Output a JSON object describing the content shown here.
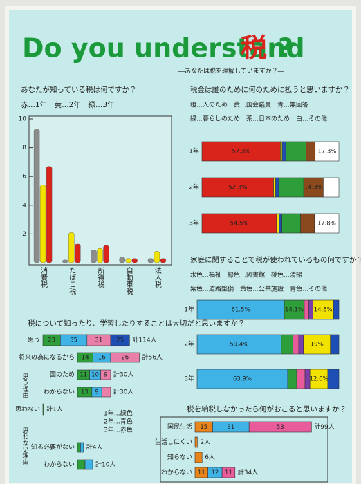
{
  "header": {
    "title_en": "Do you understand",
    "title_tax": "税",
    "title_q": "?",
    "subtitle": "―あなたは税を理解していますか？―"
  },
  "known_taxes": {
    "type": "bar",
    "question": "あなたが知っている税は何ですか？",
    "legend_note": "赤…1年　黄…2年　緑…3年",
    "categories": [
      "消費税",
      "たばこ税",
      "所得税",
      "自動車税",
      "法人税"
    ],
    "series": [
      {
        "color": "#8c8c8c",
        "values": [
          9.3,
          0.2,
          0.9,
          0.4,
          0.3
        ]
      },
      {
        "color": "#f2e200",
        "values": [
          5.4,
          2.1,
          1.0,
          0.3,
          0.8
        ]
      },
      {
        "color": "#d9241c",
        "values": [
          6.7,
          1.3,
          1.2,
          0.3,
          0.3
        ]
      }
    ],
    "ylim": [
      0,
      10
    ],
    "yticks": [
      2,
      4,
      6,
      8,
      10
    ]
  },
  "purpose": {
    "question": "税金は誰のために何のために払うと思いますか？",
    "legend": [
      "橙…人のため　黄…国会議員　青…無回答",
      "緑…暮らしのため　茶…日本のため　白…その他"
    ],
    "colors": [
      "#d9241c",
      "#f2e200",
      "#1e4fb5",
      "#2e9e3a",
      "#8a4a1e",
      "#ffffff"
    ],
    "bar_mode": "share",
    "rows": [
      {
        "label": "1年",
        "segments": [
          {
            "value": 57.3,
            "label": "57.3%"
          },
          {
            "value": 1.3
          },
          {
            "value": 2.6
          },
          {
            "value": 14.7
          },
          {
            "value": 6.8
          },
          {
            "value": 17.3,
            "label": "17.3%"
          }
        ]
      },
      {
        "label": "2年",
        "segments": [
          {
            "value": 52.3,
            "label": "52.3%"
          },
          {
            "value": 1.5
          },
          {
            "value": 2.3
          },
          {
            "value": 18.2
          },
          {
            "value": 14.3,
            "label": "14.3%"
          },
          {
            "value": 11.4
          }
        ]
      },
      {
        "label": "3年",
        "segments": [
          {
            "value": 54.5,
            "label": "54.5%"
          },
          {
            "value": 1.8
          },
          {
            "value": 2.1
          },
          {
            "value": 13.6
          },
          {
            "value": 10.2
          },
          {
            "value": 17.8,
            "label": "17.8%"
          }
        ]
      }
    ]
  },
  "usage": {
    "question": "家庭に関することで税が使われているもの何ですか？",
    "legend": [
      "水色…福祉　緑色…図書館　桃色…清掃",
      "紫色…道路整備　黄色…公共施設　青色…その他"
    ],
    "colors": [
      "#3fb3e6",
      "#2e9e3a",
      "#e85c9c",
      "#7a3fa8",
      "#f2e200",
      "#1e4fb5"
    ],
    "bar_mode": "share",
    "rows": [
      {
        "label": "1年",
        "segments": [
          {
            "value": 61.5,
            "label": "61.5%"
          },
          {
            "value": 14.1,
            "label": "14.1%"
          },
          {
            "value": 3.2
          },
          {
            "value": 2.8
          },
          {
            "value": 14.6,
            "label": "14.6%"
          },
          {
            "value": 3.8
          }
        ]
      },
      {
        "label": "2年",
        "segments": [
          {
            "value": 59.4,
            "label": "59.4%"
          },
          {
            "value": 8.1
          },
          {
            "value": 4.2
          },
          {
            "value": 3.3
          },
          {
            "value": 19.0,
            "label": "19%"
          },
          {
            "value": 6.0
          }
        ]
      },
      {
        "label": "3年",
        "segments": [
          {
            "value": 63.9,
            "label": "63.9%"
          },
          {
            "value": 6.4
          },
          {
            "value": 5.8
          },
          {
            "value": 3.5
          },
          {
            "value": 12.6,
            "label": "12.6%"
          },
          {
            "value": 7.8
          }
        ]
      }
    ]
  },
  "importance": {
    "question": "税について知ったり、学習したりすることは大切だと思いますか？",
    "colors": [
      "#2e9e3a",
      "#3fb3e6",
      "#e87fa8",
      "#1e4fb5"
    ],
    "bar_mode": "count",
    "rows": [
      {
        "label": "思う",
        "total": "計114人",
        "segments": [
          {
            "value": 23
          },
          {
            "value": 35
          },
          {
            "value": 31
          },
          {
            "value": 25
          }
        ]
      },
      {
        "label": "思わない",
        "total": "計1人",
        "segments": [
          {
            "value": 1
          }
        ]
      }
    ],
    "reasons_heading": "思う理由",
    "reasons": [
      {
        "label": "将来の為になるから",
        "total": "計56人",
        "segments": [
          {
            "value": 14
          },
          {
            "value": 16
          },
          {
            "value": 26
          }
        ]
      },
      {
        "label": "国のため",
        "total": "計30人",
        "segments": [
          {
            "value": 11
          },
          {
            "value": 10
          },
          {
            "value": 9
          }
        ]
      },
      {
        "label": "わからない",
        "total": "計30人",
        "segments": [
          {
            "value": 13
          },
          {
            "value": 9
          },
          {
            "value": 8
          }
        ]
      }
    ],
    "legend": [
      "1年…緑色",
      "2年…青色",
      "3年…赤色"
    ],
    "no_heading": "思わない理由",
    "no_reasons": [
      {
        "label": "知る必要がない",
        "total": "計4人",
        "segments": [
          {
            "value": 2
          },
          {
            "value": 2
          }
        ]
      },
      {
        "label": "わからない",
        "total": "計10人",
        "segments": [
          {
            "value": 5
          },
          {
            "value": 5
          }
        ]
      }
    ]
  },
  "no_pay": {
    "question": "税を納税しなかったら何がおこると思いますか？",
    "colors": [
      "#e8841c",
      "#3fb3e6",
      "#e85c9c",
      "#1e4fb5"
    ],
    "bar_mode": "count",
    "rows": [
      {
        "label": "国民生活",
        "total": "計99人",
        "segments": [
          {
            "value": 15
          },
          {
            "value": 31
          },
          {
            "value": 53
          }
        ]
      },
      {
        "label": "生活しにくい",
        "total": "2人",
        "segments": [
          {
            "value": 2
          }
        ]
      },
      {
        "label": "知らない",
        "total": "6人",
        "segments": [
          {
            "value": 6
          }
        ]
      },
      {
        "label": "わからない",
        "total": "計34人",
        "segments": [
          {
            "value": 11
          },
          {
            "value": 12
          },
          {
            "value": 11
          }
        ]
      }
    ]
  }
}
